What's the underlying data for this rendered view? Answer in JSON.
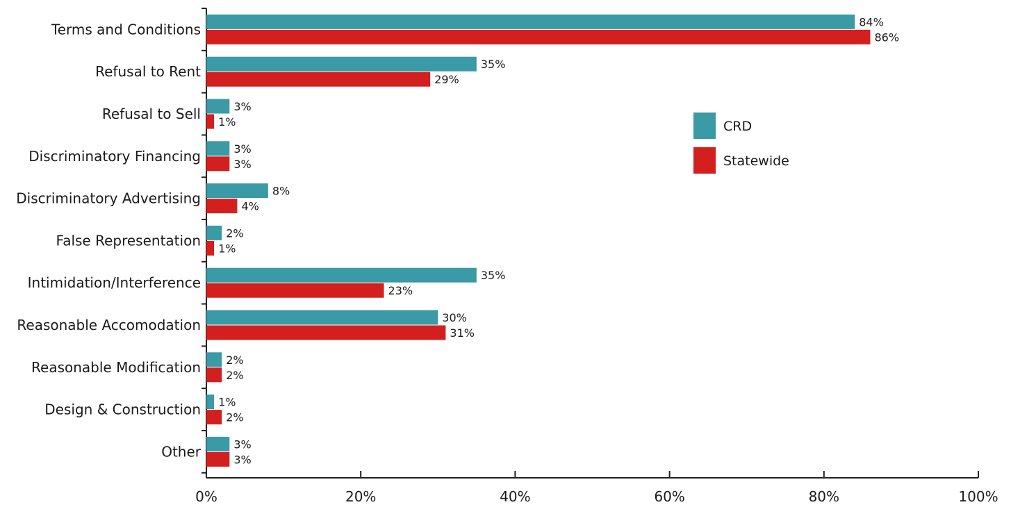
{
  "chart_data": {
    "type": "bar",
    "orientation": "horizontal",
    "categories": [
      "Terms and Conditions",
      "Refusal to Rent",
      "Refusal to Sell",
      "Discriminatory Financing",
      "Discriminatory Advertising",
      "False Representation",
      "Intimidation/Interference",
      "Reasonable Accomodation",
      "Reasonable Modification",
      "Design & Construction",
      "Other"
    ],
    "series": [
      {
        "name": "CRD",
        "color": "#3a9aa6",
        "values": [
          84,
          35,
          3,
          3,
          8,
          2,
          35,
          30,
          2,
          1,
          3
        ],
        "labels": [
          "84%",
          "35%",
          "3%",
          "3%",
          "8%",
          "2%",
          "35%",
          "30%",
          "2%",
          "1%",
          "3%"
        ]
      },
      {
        "name": "Statewide",
        "color": "#d41f1f",
        "values": [
          86,
          29,
          1,
          3,
          4,
          1,
          23,
          31,
          2,
          2,
          3
        ],
        "labels": [
          "86%",
          "29%",
          "1%",
          "3%",
          "4%",
          "1%",
          "23%",
          "31%",
          "2%",
          "2%",
          "3%"
        ]
      }
    ],
    "xlim": [
      0,
      100
    ],
    "xticks": [
      0,
      20,
      40,
      60,
      80,
      100
    ],
    "xtick_labels": [
      "0%",
      "20%",
      "40%",
      "60%",
      "80%",
      "100%"
    ],
    "grid": false,
    "legend": {
      "position": "right",
      "entries": [
        "CRD",
        "Statewide"
      ]
    }
  }
}
